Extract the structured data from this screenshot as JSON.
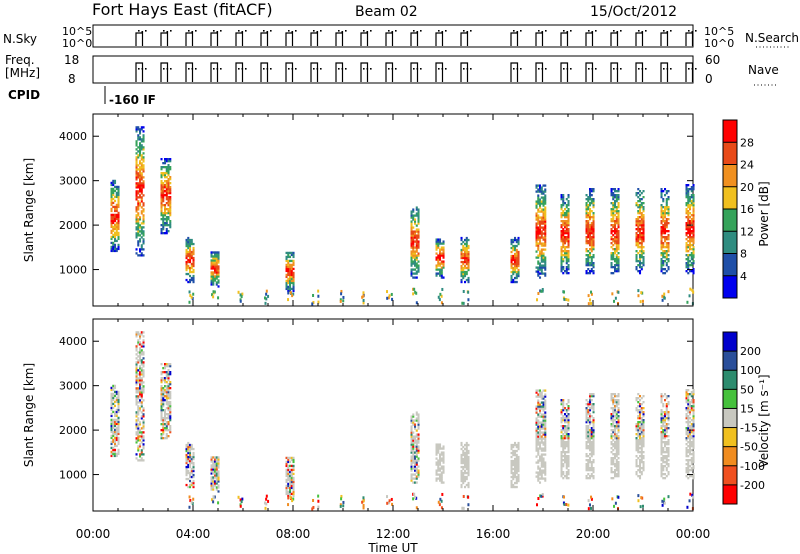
{
  "header": {
    "station": "Fort Hays East (fitACF)",
    "beam": "Beam 02",
    "date": "15/Oct/2012"
  },
  "params": {
    "nsky_label": "N.Sky",
    "nsky_ticks": [
      "10^5",
      "10^0"
    ],
    "nsearch_label": "N.Search",
    "nsearch_ticks": [
      "10^5",
      "10^0"
    ],
    "freq_label": [
      "Freq.",
      "[MHz]"
    ],
    "freq_ticks": [
      "18",
      "8"
    ],
    "nave_label": "Nave",
    "nave_ticks": [
      "60",
      "0"
    ],
    "cpid_label": "CPID",
    "cpid_value": "-160 IF"
  },
  "chart_data": [
    {
      "type": "heatmap",
      "panel": "power",
      "ylabel": "Slant Range [km]",
      "ylim": [
        180,
        4500
      ],
      "yticks": [
        1000,
        2000,
        3000,
        4000
      ],
      "xlim": [
        0,
        24
      ],
      "colorbar": {
        "label": "Power [dB]",
        "range": [
          0,
          32
        ],
        "ticks": [
          4,
          8,
          12,
          16,
          20,
          24,
          28
        ],
        "colors": [
          "#0000ee",
          "#1f4fa8",
          "#2f8c80",
          "#35a35a",
          "#f0c020",
          "#f09020",
          "#e84a18",
          "#ff0000"
        ]
      },
      "data_regions": [
        {
          "t": [
            0.7,
            1.0
          ],
          "r": [
            1400,
            3000
          ]
        },
        {
          "t": [
            1.7,
            2.0
          ],
          "r": [
            1300,
            4200
          ]
        },
        {
          "t": [
            2.7,
            3.1
          ],
          "r": [
            1800,
            3500
          ]
        },
        {
          "t": [
            3.7,
            4.0
          ],
          "r": [
            700,
            1700
          ]
        },
        {
          "t": [
            4.7,
            5.0
          ],
          "r": [
            600,
            1400
          ]
        },
        {
          "t": [
            7.7,
            8.0
          ],
          "r": [
            500,
            1400
          ]
        },
        {
          "t": [
            12.7,
            13.0
          ],
          "r": [
            800,
            2400
          ]
        },
        {
          "t": [
            13.7,
            14.0
          ],
          "r": [
            800,
            1700
          ]
        },
        {
          "t": [
            14.7,
            15.0
          ],
          "r": [
            700,
            1700
          ]
        },
        {
          "t": [
            16.7,
            17.0
          ],
          "r": [
            700,
            1700
          ]
        },
        {
          "t": [
            17.7,
            18.1
          ],
          "r": [
            800,
            2900
          ]
        },
        {
          "t": [
            18.7,
            19.0
          ],
          "r": [
            900,
            2700
          ]
        },
        {
          "t": [
            19.7,
            20.0
          ],
          "r": [
            900,
            2800
          ]
        },
        {
          "t": [
            20.7,
            21.0
          ],
          "r": [
            900,
            2800
          ]
        },
        {
          "t": [
            21.7,
            22.0
          ],
          "r": [
            900,
            2800
          ]
        },
        {
          "t": [
            22.7,
            23.0
          ],
          "r": [
            900,
            2800
          ]
        },
        {
          "t": [
            23.7,
            24.0
          ],
          "r": [
            900,
            2900
          ]
        }
      ]
    },
    {
      "type": "heatmap",
      "panel": "velocity",
      "ylabel": "Slant Range [km]",
      "ylim": [
        180,
        4500
      ],
      "yticks": [
        1000,
        2000,
        3000,
        4000
      ],
      "xlim": [
        0,
        24
      ],
      "xticks": [
        "00:00",
        "04:00",
        "08:00",
        "12:00",
        "16:00",
        "20:00",
        "00:00"
      ],
      "xlabel": "Time UT",
      "colorbar": {
        "label": "Velocity [m s⁻¹]",
        "ticks": [
          "200",
          "100",
          "50",
          "15",
          "-15",
          "-50",
          "-100",
          "-200"
        ],
        "colors": [
          "#0000cc",
          "#2a4f9a",
          "#2d8c6e",
          "#46c13c",
          "#c8c8c0",
          "#f0c020",
          "#f08c20",
          "#f05020",
          "#ff0000"
        ]
      }
    }
  ]
}
